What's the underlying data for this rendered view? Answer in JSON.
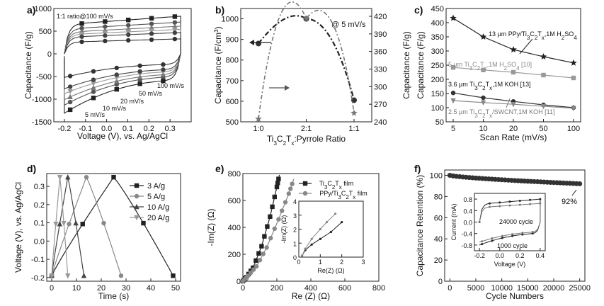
{
  "chart_data": [
    {
      "panel": "a",
      "type": "line",
      "xlabel": "Voltage (V), vs. Ag/AgCl",
      "ylabel": "Capacitance (F/g)",
      "xlim": [
        -0.25,
        0.4
      ],
      "ylim": [
        -1500,
        1000
      ],
      "xticks": [
        -0.2,
        -0.1,
        0.0,
        0.1,
        0.2,
        0.3
      ],
      "yticks": [
        -1500,
        -1000,
        -500,
        0,
        500,
        1000
      ],
      "annotations": [
        "1:1 ratio@100 mV/s",
        "100 mV/s",
        "50 mV/s",
        "20 mV/s",
        "10 mV/s",
        "5 mV/s"
      ],
      "series": [
        {
          "name": "5 mV/s",
          "top": 830,
          "bottom": -1310,
          "color": "#222222"
        },
        {
          "name": "10 mV/s",
          "top": 700,
          "bottom": -1130,
          "color": "#555555"
        },
        {
          "name": "20 mV/s",
          "top": 610,
          "bottom": -1010,
          "color": "#777777"
        },
        {
          "name": "50 mV/s",
          "top": 540,
          "bottom": -880,
          "color": "#999999"
        },
        {
          "name": "100 mV/s",
          "top": 470,
          "bottom": -770,
          "color": "#444444"
        },
        {
          "name": "1:1 ratio@100 mV/s",
          "top": 330,
          "bottom": -520,
          "color": "#333333"
        }
      ]
    },
    {
      "panel": "b",
      "type": "line",
      "xlabel": "Ti3C2Tx:Pyrrole Ratio",
      "ylabel": "Capacitance (F/cm3)",
      "y2label": "Capacitance (F/g)",
      "categories": [
        "1:0",
        "2:1",
        "1:1"
      ],
      "values_volumetric": [
        880,
        1000,
        605
      ],
      "values_gravimetric": [
        245,
        416,
        255
      ],
      "ylim": [
        500,
        1050
      ],
      "y2lim": [
        240,
        420
      ],
      "yticks": [
        500,
        600,
        700,
        800,
        900,
        1000
      ],
      "y2ticks": [
        240,
        270,
        300,
        330,
        360,
        390,
        420
      ],
      "annotation": "@ 5 mV/s"
    },
    {
      "panel": "c",
      "type": "line",
      "xlabel": "Scan Rate (mV/s)",
      "ylabel": "Capacitance (F/g)",
      "categories": [
        "5",
        "10",
        "20",
        "50",
        "100"
      ],
      "ylim": [
        50,
        450
      ],
      "yticks": [
        50,
        100,
        150,
        200,
        250,
        300,
        350,
        400,
        450
      ],
      "series": [
        {
          "name": "13 µm PPy/Ti3C2Tx,1M H2SO4",
          "values": [
            416,
            350,
            305,
            280,
            258
          ],
          "color": "#222222",
          "marker": "star"
        },
        {
          "name": "5 µm Ti3C2Tx,1M H2SO4 [10]",
          "values": [
            242,
            233,
            225,
            215,
            205
          ],
          "color": "#999999",
          "marker": "square"
        },
        {
          "name": "3.6 µm Ti3C2Tx,1M KOH [13]",
          "values": [
            152,
            135,
            122,
            110,
            100
          ],
          "color": "#333333",
          "marker": "circle"
        },
        {
          "name": "2.5 µm Ti3C2Tx/SWCNT,1M KOH [11]",
          "values": [
            125,
            118,
            112,
            105,
            98
          ],
          "color": "#888888",
          "marker": "triangle-down"
        }
      ]
    },
    {
      "panel": "d",
      "type": "line",
      "xlabel": "Time (s)",
      "ylabel": "Voltage (V), vs. Ag/AgCl",
      "xlim": [
        -2,
        52
      ],
      "ylim": [
        -0.22,
        0.37
      ],
      "xticks": [
        0,
        10,
        20,
        30,
        40,
        50
      ],
      "yticks": [
        -0.2,
        -0.1,
        0.0,
        0.1,
        0.2,
        0.3
      ],
      "series": [
        {
          "name": "3 A/g",
          "peak_time": 25,
          "end_time": 49,
          "color": "#222222",
          "marker": "square"
        },
        {
          "name": "5 A/g",
          "peak_time": 14,
          "end_time": 28,
          "color": "#888888",
          "marker": "circle"
        },
        {
          "name": "10 A/g",
          "peak_time": 6.5,
          "end_time": 13,
          "color": "#444444",
          "marker": "triangle"
        },
        {
          "name": "20 A/g",
          "peak_time": 3.3,
          "end_time": 6.5,
          "color": "#999999",
          "marker": "triangle-down"
        }
      ]
    },
    {
      "panel": "e",
      "type": "scatter",
      "xlabel": "Re (Z) (Ω)",
      "ylabel": "-Im(Z) (Ω)",
      "xlim": [
        0,
        800
      ],
      "ylim": [
        0,
        800
      ],
      "xticks": [
        0,
        200,
        400,
        600,
        800
      ],
      "yticks": [
        0,
        200,
        400,
        600,
        800
      ],
      "series": [
        {
          "name": "Ti3C2Tx film",
          "color": "#222222",
          "marker": "square"
        },
        {
          "name": "PPy/Ti3C2Tx film",
          "color": "#888888",
          "marker": "circle"
        }
      ],
      "inset": {
        "xlabel": "Re(Z) (Ω)",
        "ylabel": "-Im(Z) (Ω)",
        "xlim": [
          0,
          3
        ],
        "ylim": [
          0,
          4
        ],
        "xticks": [
          0,
          1,
          2,
          3
        ],
        "yticks": [
          0,
          1,
          2,
          3,
          4
        ]
      }
    },
    {
      "panel": "f",
      "type": "scatter",
      "xlabel": "Cycle Numbers",
      "ylabel": "Capacitance Retention (%)",
      "xlim": [
        -1000,
        26000
      ],
      "ylim": [
        0,
        105
      ],
      "xticks": [
        0,
        5000,
        10000,
        15000,
        20000,
        25000
      ],
      "yticks": [
        0,
        20,
        40,
        60,
        80,
        100
      ],
      "start": 100,
      "end": 92,
      "annotation": "92%",
      "inset": {
        "xlabel": "Voltage (V)",
        "ylabel": "Current (mA)",
        "xlim": [
          -0.25,
          0.45
        ],
        "ylim": [
          -1.0,
          1.0
        ],
        "xticks": [
          -0.2,
          0.0,
          0.2,
          0.4
        ],
        "yticks": [
          -0.8,
          -0.4,
          0.0,
          0.4,
          0.8
        ],
        "labels": [
          "24000 cycle",
          "1000 cycle"
        ]
      }
    }
  ],
  "panel_labels": [
    "a)",
    "b)",
    "c)",
    "d)",
    "e)",
    "f)"
  ]
}
